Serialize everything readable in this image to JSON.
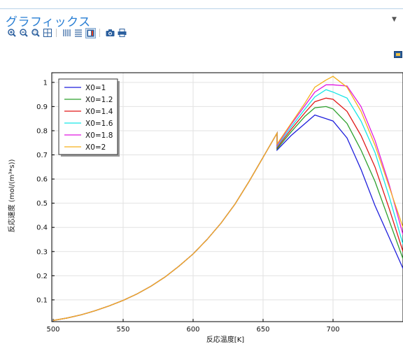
{
  "panel": {
    "title": "グラフィックス"
  },
  "toolbar": {
    "icons": [
      "zoom-in-icon",
      "zoom-out-icon",
      "zoom-box-icon",
      "zoom-extents-icon",
      "grid-toggle-icon",
      "legend-icon",
      "color-table-icon",
      "image-snapshot-icon",
      "print-icon"
    ]
  },
  "chart_data": {
    "type": "line",
    "xlabel": "反応温度[K]",
    "ylabel": "反応速度 (mol/(m³*s))",
    "xlim": [
      499,
      750
    ],
    "ylim": [
      0.01,
      1.04
    ],
    "xticks": [
      "500",
      "550",
      "600",
      "650",
      "700"
    ],
    "yticks": [
      "0.1",
      "0.2",
      "0.3",
      "0.4",
      "0.5",
      "0.6",
      "0.7",
      "0.8",
      "0.9",
      "1"
    ],
    "grid": true,
    "legend_position": "top-left",
    "shared_x": [
      500,
      510,
      520,
      530,
      540,
      550,
      560,
      570,
      580,
      590,
      600,
      610,
      620,
      630,
      640,
      650,
      660,
      670,
      680,
      690,
      700,
      710,
      720,
      730,
      740,
      750
    ],
    "shared_values": [
      0.015,
      0.025,
      0.038,
      0.055,
      0.075,
      0.098,
      0.125,
      0.157,
      0.195,
      0.24,
      0.29,
      0.35,
      0.418,
      0.497,
      0.59,
      0.69,
      0.79
    ],
    "series": [
      {
        "name": "X0=1",
        "color": "#1f1fdc",
        "tail_x": [
          660,
          670,
          680,
          687,
          695,
          700,
          710,
          720,
          730,
          740,
          750
        ],
        "tail_y": [
          0.72,
          0.78,
          0.83,
          0.865,
          0.85,
          0.84,
          0.77,
          0.64,
          0.49,
          0.36,
          0.23
        ]
      },
      {
        "name": "X0=1.2",
        "color": "#2ca02c",
        "tail_x": [
          660,
          670,
          680,
          687,
          695,
          700,
          710,
          720,
          730,
          740,
          750
        ],
        "tail_y": [
          0.725,
          0.795,
          0.86,
          0.895,
          0.9,
          0.89,
          0.83,
          0.72,
          0.59,
          0.43,
          0.27
        ]
      },
      {
        "name": "X0=1.4",
        "color": "#e01818",
        "tail_x": [
          660,
          670,
          680,
          687,
          695,
          700,
          710,
          720,
          730,
          740,
          750
        ],
        "tail_y": [
          0.73,
          0.805,
          0.875,
          0.92,
          0.935,
          0.93,
          0.88,
          0.78,
          0.65,
          0.48,
          0.3
        ]
      },
      {
        "name": "X0=1.6",
        "color": "#18e6e6",
        "tail_x": [
          660,
          670,
          680,
          687,
          695,
          700,
          710,
          720,
          730,
          740,
          750
        ],
        "tail_y": [
          0.735,
          0.815,
          0.89,
          0.94,
          0.97,
          0.96,
          0.935,
          0.84,
          0.71,
          0.53,
          0.33
        ]
      },
      {
        "name": "X0=1.8",
        "color": "#e018e0",
        "tail_x": [
          660,
          670,
          680,
          687,
          695,
          700,
          710,
          720,
          730,
          740,
          750
        ],
        "tail_y": [
          0.74,
          0.825,
          0.905,
          0.96,
          0.99,
          0.99,
          0.985,
          0.9,
          0.76,
          0.58,
          0.37
        ]
      },
      {
        "name": "X0=2",
        "color": "#f5b01a",
        "tail_x": [
          660,
          670,
          680,
          687,
          695,
          700,
          710,
          720,
          730,
          740,
          750
        ],
        "tail_y": [
          0.745,
          0.83,
          0.915,
          0.98,
          1.01,
          1.025,
          0.98,
          0.88,
          0.74,
          0.57,
          0.4
        ]
      }
    ]
  }
}
